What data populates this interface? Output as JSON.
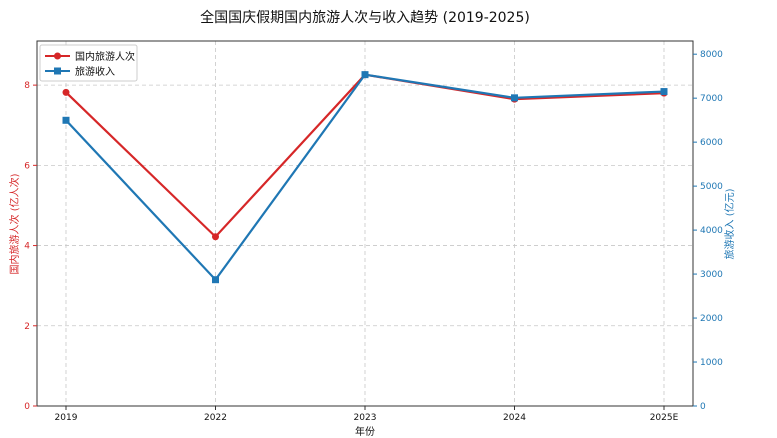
{
  "chart_data": {
    "type": "line",
    "title": "全国国庆假期国内旅游人次与收入趋势 (2019-2025)",
    "xlabel": "年份",
    "categories": [
      "2019",
      "2022",
      "2023",
      "2024",
      "2025E"
    ],
    "y_left": {
      "label": "国内旅游人次 (亿人次)",
      "lim": [
        0,
        9.1
      ],
      "ticks": [
        0,
        2,
        4,
        6,
        8
      ],
      "color": "#d62728"
    },
    "y_right": {
      "label": "旅游收入 (亿元)",
      "lim": [
        0,
        8300
      ],
      "ticks": [
        0,
        1000,
        2000,
        3000,
        4000,
        5000,
        6000,
        7000,
        8000
      ],
      "color": "#1f77b4"
    },
    "series": [
      {
        "name": "国内旅游人次",
        "axis": "left",
        "color": "#d62728",
        "marker": "circle",
        "values": [
          7.82,
          4.22,
          8.26,
          7.65,
          7.8
        ]
      },
      {
        "name": "旅游收入",
        "axis": "right",
        "color": "#1f77b4",
        "marker": "square",
        "values": [
          6497,
          2872,
          7535,
          7008,
          7150
        ]
      }
    ],
    "grid": true,
    "legend": "top-left"
  }
}
